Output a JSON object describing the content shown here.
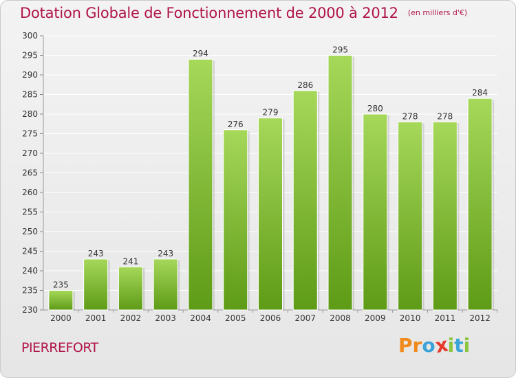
{
  "header": {
    "title": "Dotation Globale de Fonctionnement de 2000 à 2012",
    "unit": "(en milliers d'€)"
  },
  "footer": {
    "commune": "PIERREFORT",
    "brand_letters": [
      "P",
      "r",
      "o",
      "x",
      "i",
      "t",
      "i"
    ],
    "brand_colors": [
      "#f08a1c",
      "#f08a1c",
      "#3aa3d8",
      "#e53a2b",
      "#8cc63f",
      "#3aa3d8",
      "#8cc63f"
    ]
  },
  "colors": {
    "bar_top": "#a6d85a",
    "bar_bottom": "#5e9b16",
    "title": "#b0144a",
    "grid": "#ffffff"
  },
  "chart_data": {
    "type": "bar",
    "title": "Dotation Globale de Fonctionnement de 2000 à 2012",
    "subtitle": "(en milliers d'€)",
    "xlabel": "",
    "ylabel": "",
    "categories": [
      "2000",
      "2001",
      "2002",
      "2003",
      "2004",
      "2005",
      "2006",
      "2007",
      "2008",
      "2009",
      "2010",
      "2011",
      "2012"
    ],
    "values": [
      235,
      243,
      241,
      243,
      294,
      276,
      279,
      286,
      295,
      280,
      278,
      278,
      284
    ],
    "ylim": [
      230,
      300
    ],
    "yticks": [
      230,
      235,
      240,
      245,
      250,
      255,
      260,
      265,
      270,
      275,
      280,
      285,
      290,
      295,
      300
    ],
    "grid": true,
    "data_labels": true
  }
}
